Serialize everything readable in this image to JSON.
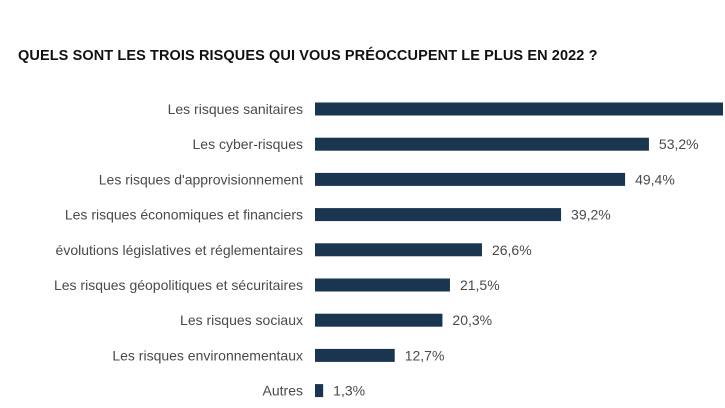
{
  "chart_data": {
    "type": "bar",
    "orientation": "horizontal",
    "title": "QUELS SONT LES TROIS RISQUES QUI VOUS PRÉOCCUPENT LE PLUS EN 2022 ?",
    "categories": [
      "Les risques sanitaires",
      "Les cyber-risques",
      "Les risques d'approvisionnement",
      "Les risques économiques et financiers",
      "évolutions législatives et réglementaires",
      "Les risques géopolitiques et sécuritaires",
      "Les risques sociaux",
      "Les risques environnementaux",
      "Autres"
    ],
    "values": [
      65.0,
      53.2,
      49.4,
      39.2,
      26.6,
      21.5,
      20.3,
      12.7,
      1.3
    ],
    "value_labels": [
      "",
      "53,2%",
      "49,4%",
      "39,2%",
      "26,6%",
      "21,5%",
      "20,3%",
      "12,7%",
      "1,3%"
    ],
    "bar_color": "#1a3550",
    "xlim": [
      0,
      65
    ],
    "grid": false,
    "legend": "none"
  }
}
